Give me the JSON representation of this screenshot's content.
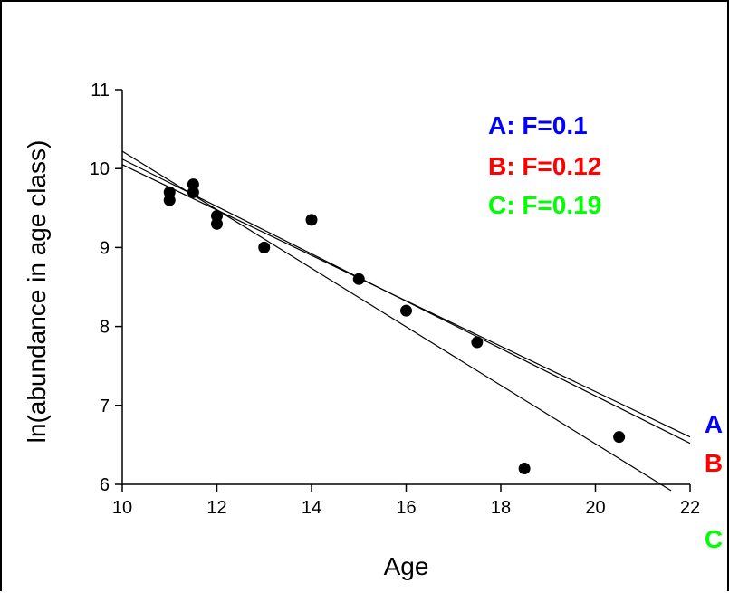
{
  "chart_data": {
    "type": "scatter",
    "title": "",
    "xlabel": "Age",
    "ylabel": "ln(abundance in age class)",
    "xlim": [
      10,
      22
    ],
    "ylim": [
      6,
      11
    ],
    "xticks": [
      10,
      12,
      14,
      16,
      18,
      20,
      22
    ],
    "yticks": [
      6,
      7,
      8,
      9,
      10,
      11
    ],
    "grid": false,
    "points": {
      "x": [
        11,
        11,
        11.5,
        11.5,
        12,
        12,
        13,
        14,
        15,
        16,
        17.5,
        18.5,
        20.5
      ],
      "y": [
        9.7,
        9.6,
        9.8,
        9.7,
        9.4,
        9.3,
        9.0,
        9.35,
        8.6,
        8.2,
        7.8,
        6.2,
        6.6
      ]
    },
    "fit_lines": [
      {
        "label": "A",
        "x": [
          10,
          22
        ],
        "y": [
          10.05,
          6.6
        ],
        "color": "#0000ff"
      },
      {
        "label": "B",
        "x": [
          10,
          22
        ],
        "y": [
          10.12,
          6.52
        ],
        "color": "#ff0000"
      },
      {
        "label": "C",
        "x": [
          10,
          21.6
        ],
        "y": [
          10.22,
          5.92
        ],
        "color": "#00ff00"
      }
    ],
    "legend": {
      "placement": "top-right",
      "entries": [
        {
          "text": "A: F=0.1",
          "color": "#0000ff"
        },
        {
          "text": "B: F=0.12",
          "color": "#ff0000"
        },
        {
          "text": "C: F=0.19",
          "color": "#00ff00"
        }
      ]
    },
    "line_labels": [
      {
        "text": "A",
        "color": "#0000ff"
      },
      {
        "text": "B",
        "color": "#ff0000"
      },
      {
        "text": "C",
        "color": "#00ff00"
      }
    ]
  }
}
